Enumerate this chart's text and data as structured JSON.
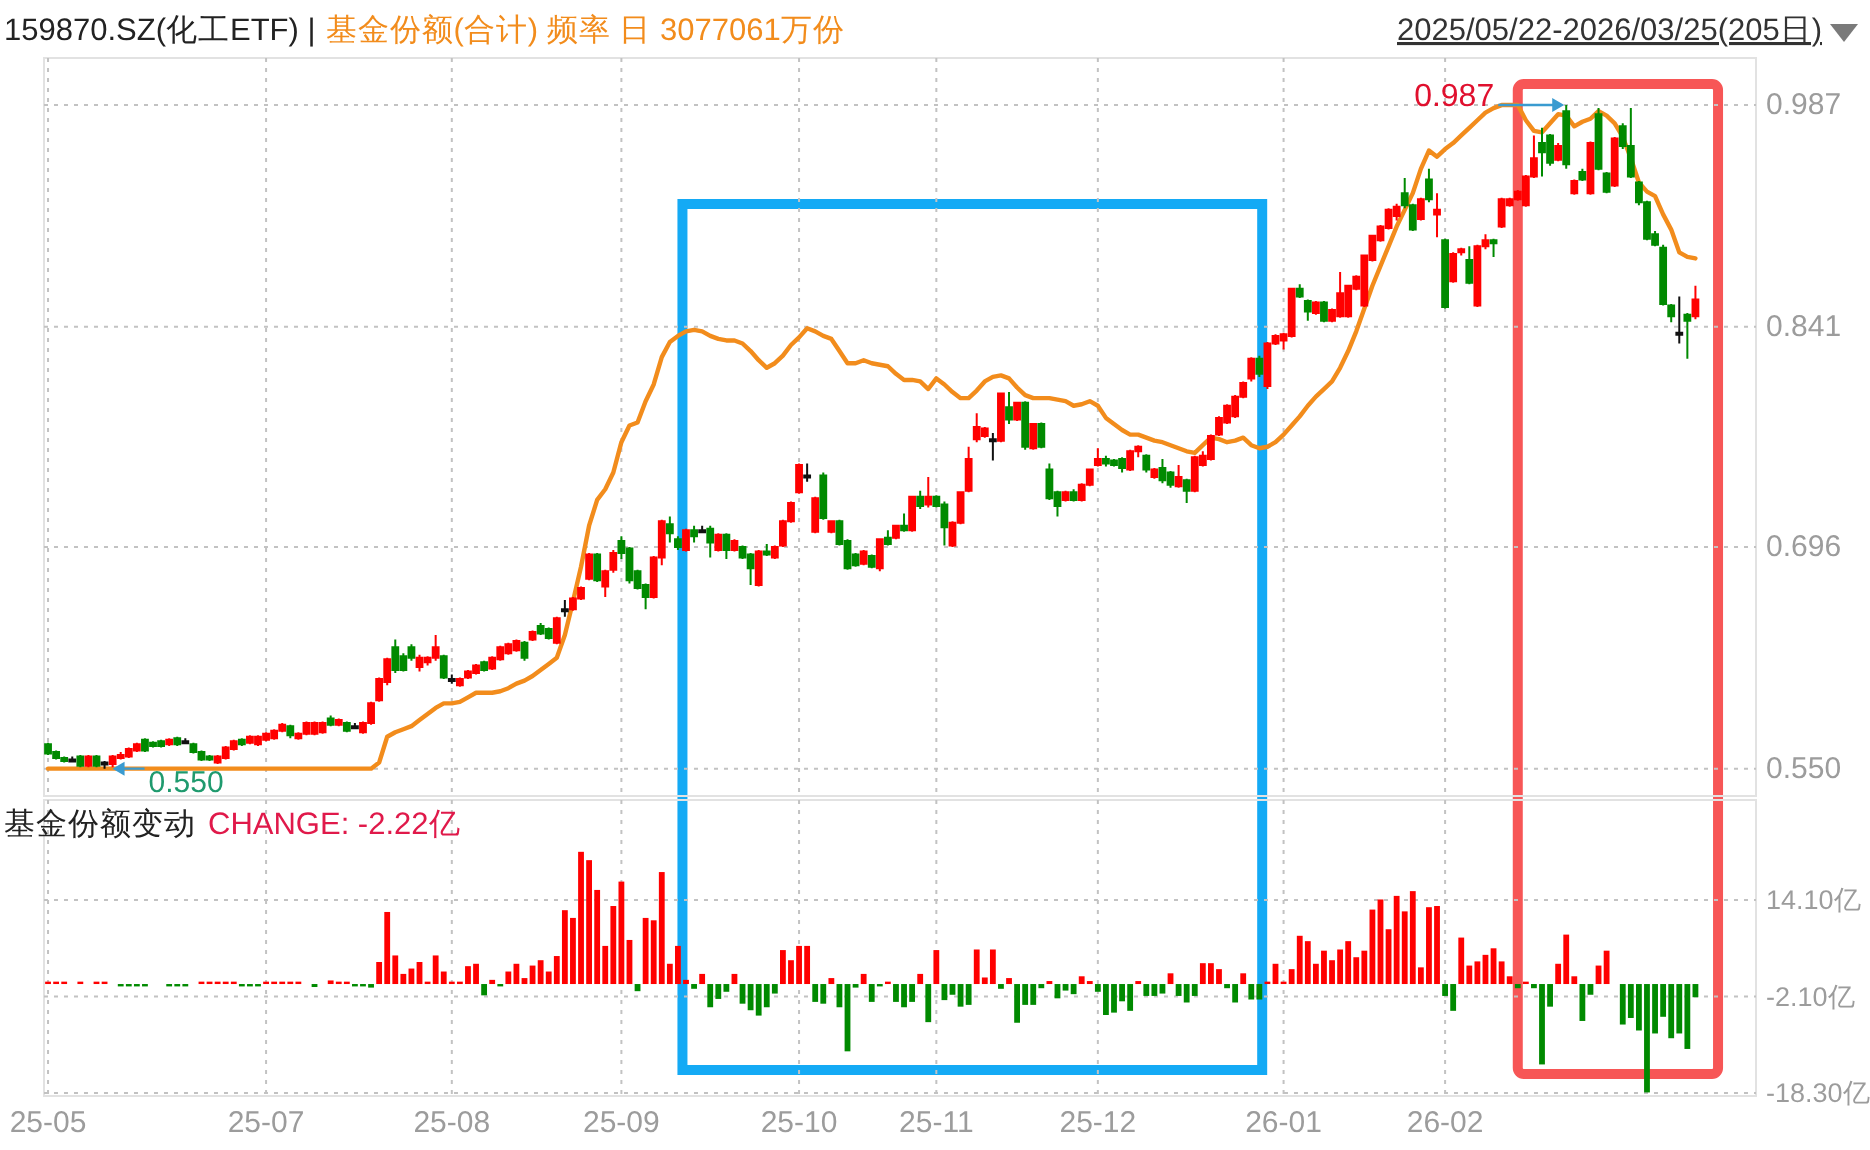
{
  "chart_data": [
    {
      "type": "candlestick",
      "title": "159870.SZ(化工ETF) |",
      "tick_labels": "y",
      "grid": true,
      "categories": [
        null,
        null,
        null,
        null,
        null,
        null,
        null,
        null,
        null,
        null,
        null,
        null,
        null,
        null,
        null,
        null,
        null,
        null,
        null,
        null,
        null,
        null,
        null,
        null,
        null,
        null,
        null,
        null,
        null,
        null,
        null,
        null,
        null,
        null,
        null,
        null,
        null,
        null,
        null,
        null,
        null,
        null,
        null,
        null,
        null,
        null,
        null,
        null,
        null,
        null,
        null,
        null,
        null,
        null,
        null,
        null,
        null,
        null,
        null,
        null,
        null,
        null,
        null,
        null,
        null,
        null,
        null,
        null,
        null,
        null,
        null,
        null,
        null,
        null,
        null,
        null,
        null,
        null,
        null,
        null,
        null,
        null,
        null,
        null,
        null,
        null,
        null,
        null,
        null,
        null,
        null,
        null,
        null,
        null,
        null,
        null,
        null,
        null,
        null,
        null,
        null,
        null,
        null,
        null,
        null,
        null,
        null,
        null,
        null,
        null,
        null,
        null,
        null,
        null,
        null,
        null,
        null,
        null,
        null,
        null,
        null,
        null,
        null,
        null,
        null,
        null,
        null,
        null,
        null,
        null,
        null,
        null,
        null,
        null,
        null,
        null,
        null,
        null,
        null,
        null,
        null,
        null,
        null,
        null,
        null,
        null,
        null,
        null,
        null,
        null,
        null,
        null,
        null,
        null,
        null,
        null,
        null,
        null,
        null,
        null,
        null,
        null,
        null,
        null,
        null,
        null,
        null,
        null,
        null,
        null,
        null,
        null,
        null,
        null,
        null,
        null,
        null,
        null,
        null,
        null,
        null,
        null,
        null,
        null,
        null,
        null,
        null,
        null,
        null,
        null,
        null,
        null,
        null,
        null,
        null,
        null,
        null,
        null,
        null,
        null,
        null,
        null,
        null,
        null,
        null
      ],
      "ohlc": [
        [
          0.566,
          0.567,
          0.559,
          0.56
        ],
        [
          0.561,
          0.562,
          0.556,
          0.557
        ],
        [
          0.557,
          0.558,
          0.554,
          0.555
        ],
        [
          0.556,
          0.558,
          0.554,
          0.556
        ],
        [
          0.558,
          0.559,
          0.551,
          0.552
        ],
        [
          0.552,
          0.559,
          0.551,
          0.558
        ],
        [
          0.558,
          0.559,
          0.551,
          0.552
        ],
        [
          0.554,
          0.555,
          0.55,
          0.554
        ],
        [
          0.553,
          0.559,
          0.551,
          0.558
        ],
        [
          0.557,
          0.561,
          0.556,
          0.559
        ],
        [
          0.558,
          0.564,
          0.557,
          0.563
        ],
        [
          0.562,
          0.567,
          0.561,
          0.566
        ],
        [
          0.569,
          0.57,
          0.561,
          0.562
        ],
        [
          0.567,
          0.568,
          0.564,
          0.565
        ],
        [
          0.568,
          0.569,
          0.564,
          0.565
        ],
        [
          0.566,
          0.57,
          0.565,
          0.569
        ],
        [
          0.57,
          0.571,
          0.565,
          0.566
        ],
        [
          0.568,
          0.57,
          0.567,
          0.568
        ],
        [
          0.566,
          0.567,
          0.56,
          0.561
        ],
        [
          0.561,
          0.562,
          0.555,
          0.556
        ],
        [
          0.558,
          0.559,
          0.555,
          0.556
        ],
        [
          0.554,
          0.559,
          0.553,
          0.558
        ],
        [
          0.557,
          0.565,
          0.556,
          0.564
        ],
        [
          0.563,
          0.569,
          0.562,
          0.568
        ],
        [
          0.569,
          0.57,
          0.565,
          0.566
        ],
        [
          0.567,
          0.572,
          0.566,
          0.571
        ],
        [
          0.566,
          0.572,
          0.565,
          0.571
        ],
        [
          0.569,
          0.574,
          0.568,
          0.573
        ],
        [
          0.57,
          0.576,
          0.569,
          0.575
        ],
        [
          0.575,
          0.58,
          0.574,
          0.579
        ],
        [
          0.578,
          0.579,
          0.57,
          0.572
        ],
        [
          0.57,
          0.574,
          0.569,
          0.573
        ],
        [
          0.573,
          0.581,
          0.572,
          0.58
        ],
        [
          0.573,
          0.581,
          0.572,
          0.58
        ],
        [
          0.574,
          0.581,
          0.573,
          0.58
        ],
        [
          0.583,
          0.585,
          0.578,
          0.579
        ],
        [
          0.579,
          0.583,
          0.578,
          0.582
        ],
        [
          0.58,
          0.581,
          0.574,
          0.575
        ],
        [
          0.578,
          0.58,
          0.576,
          0.578
        ],
        [
          0.574,
          0.581,
          0.573,
          0.58
        ],
        [
          0.58,
          0.594,
          0.579,
          0.593
        ],
        [
          0.595,
          0.61,
          0.594,
          0.609
        ],
        [
          0.607,
          0.623,
          0.605,
          0.622
        ],
        [
          0.63,
          0.635,
          0.613,
          0.615
        ],
        [
          0.624,
          0.626,
          0.614,
          0.615
        ],
        [
          0.63,
          0.632,
          0.621,
          0.623
        ],
        [
          0.617,
          0.625,
          0.614,
          0.623
        ],
        [
          0.62,
          0.624,
          0.618,
          0.623
        ],
        [
          0.623,
          0.638,
          0.621,
          0.63
        ],
        [
          0.624,
          0.625,
          0.609,
          0.61
        ],
        [
          0.609,
          0.612,
          0.606,
          0.609
        ],
        [
          0.605,
          0.61,
          0.604,
          0.609
        ],
        [
          0.61,
          0.615,
          0.609,
          0.614
        ],
        [
          0.613,
          0.619,
          0.612,
          0.618
        ],
        [
          0.62,
          0.621,
          0.614,
          0.615
        ],
        [
          0.616,
          0.624,
          0.615,
          0.623
        ],
        [
          0.622,
          0.631,
          0.621,
          0.63
        ],
        [
          0.626,
          0.633,
          0.625,
          0.632
        ],
        [
          0.628,
          0.635,
          0.627,
          0.634
        ],
        [
          0.633,
          0.634,
          0.621,
          0.623
        ],
        [
          0.635,
          0.641,
          0.634,
          0.64
        ],
        [
          0.644,
          0.646,
          0.638,
          0.639
        ],
        [
          0.642,
          0.643,
          0.635,
          0.636
        ],
        [
          0.633,
          0.65,
          0.632,
          0.649
        ],
        [
          0.655,
          0.661,
          0.65,
          0.655
        ],
        [
          0.655,
          0.663,
          0.654,
          0.662
        ],
        [
          0.662,
          0.67,
          0.661,
          0.669
        ],
        [
          0.675,
          0.692,
          0.674,
          0.691
        ],
        [
          0.691,
          0.692,
          0.673,
          0.674
        ],
        [
          0.67,
          0.681,
          0.663,
          0.68
        ],
        [
          0.681,
          0.694,
          0.679,
          0.692
        ],
        [
          0.7,
          0.703,
          0.688,
          0.692
        ],
        [
          0.695,
          0.696,
          0.672,
          0.674
        ],
        [
          0.68,
          0.681,
          0.668,
          0.669
        ],
        [
          0.671,
          0.672,
          0.655,
          0.663
        ],
        [
          0.663,
          0.69,
          0.662,
          0.689
        ],
        [
          0.689,
          0.714,
          0.684,
          0.713
        ],
        [
          0.711,
          0.716,
          0.699,
          0.705
        ],
        [
          0.701,
          0.703,
          0.694,
          0.696
        ],
        [
          0.694,
          0.708,
          0.693,
          0.707
        ],
        [
          0.707,
          0.71,
          0.699,
          0.703
        ],
        [
          0.707,
          0.71,
          0.705,
          0.707
        ],
        [
          0.708,
          0.71,
          0.689,
          0.699
        ],
        [
          0.694,
          0.705,
          0.693,
          0.704
        ],
        [
          0.704,
          0.705,
          0.688,
          0.694
        ],
        [
          0.694,
          0.701,
          0.693,
          0.7
        ],
        [
          0.696,
          0.697,
          0.688,
          0.689
        ],
        [
          0.691,
          0.692,
          0.671,
          0.682
        ],
        [
          0.671,
          0.694,
          0.67,
          0.693
        ],
        [
          0.693,
          0.698,
          0.69,
          0.691
        ],
        [
          0.689,
          0.697,
          0.688,
          0.696
        ],
        [
          0.697,
          0.714,
          0.696,
          0.713
        ],
        [
          0.713,
          0.726,
          0.712,
          0.725
        ],
        [
          0.732,
          0.751,
          0.731,
          0.75
        ],
        [
          0.743,
          0.751,
          0.739,
          0.743
        ],
        [
          0.706,
          0.729,
          0.705,
          0.728
        ],
        [
          0.743,
          0.745,
          0.714,
          0.715
        ],
        [
          0.706,
          0.713,
          0.705,
          0.713
        ],
        [
          0.713,
          0.714,
          0.697,
          0.698
        ],
        [
          0.7,
          0.701,
          0.681,
          0.682
        ],
        [
          0.691,
          0.692,
          0.683,
          0.684
        ],
        [
          0.685,
          0.694,
          0.684,
          0.693
        ],
        [
          0.69,
          0.691,
          0.682,
          0.683
        ],
        [
          0.682,
          0.701,
          0.68,
          0.701
        ],
        [
          0.702,
          0.707,
          0.697,
          0.698
        ],
        [
          0.702,
          0.71,
          0.701,
          0.71
        ],
        [
          0.71,
          0.718,
          0.706,
          0.707
        ],
        [
          0.707,
          0.729,
          0.706,
          0.729
        ],
        [
          0.729,
          0.733,
          0.721,
          0.723
        ],
        [
          0.724,
          0.742,
          0.722,
          0.729
        ],
        [
          0.729,
          0.73,
          0.722,
          0.723
        ],
        [
          0.724,
          0.726,
          0.697,
          0.709
        ],
        [
          0.697,
          0.713,
          0.696,
          0.712
        ],
        [
          0.712,
          0.732,
          0.711,
          0.732
        ],
        [
          0.733,
          0.762,
          0.732,
          0.754
        ],
        [
          0.767,
          0.784,
          0.765,
          0.775
        ],
        [
          0.769,
          0.775,
          0.768,
          0.774
        ],
        [
          0.767,
          0.771,
          0.753,
          0.767
        ],
        [
          0.766,
          0.797,
          0.765,
          0.797
        ],
        [
          0.788,
          0.798,
          0.777,
          0.78
        ],
        [
          0.78,
          0.791,
          0.779,
          0.791
        ],
        [
          0.791,
          0.792,
          0.76,
          0.762
        ],
        [
          0.761,
          0.777,
          0.76,
          0.777
        ],
        [
          0.777,
          0.778,
          0.761,
          0.762
        ],
        [
          0.747,
          0.751,
          0.727,
          0.728
        ],
        [
          0.732,
          0.733,
          0.716,
          0.723
        ],
        [
          0.727,
          0.733,
          0.726,
          0.732
        ],
        [
          0.732,
          0.734,
          0.726,
          0.727
        ],
        [
          0.727,
          0.738,
          0.726,
          0.737
        ],
        [
          0.737,
          0.747,
          0.736,
          0.747
        ],
        [
          0.75,
          0.761,
          0.749,
          0.754
        ],
        [
          0.754,
          0.756,
          0.749,
          0.751
        ],
        [
          0.753,
          0.754,
          0.749,
          0.75
        ],
        [
          0.754,
          0.755,
          0.745,
          0.748
        ],
        [
          0.747,
          0.76,
          0.746,
          0.759
        ],
        [
          0.759,
          0.763,
          0.755,
          0.762
        ],
        [
          0.756,
          0.757,
          0.745,
          0.747
        ],
        [
          0.742,
          0.748,
          0.741,
          0.747
        ],
        [
          0.748,
          0.754,
          0.738,
          0.74
        ],
        [
          0.745,
          0.746,
          0.735,
          0.737
        ],
        [
          0.736,
          0.75,
          0.735,
          0.742
        ],
        [
          0.74,
          0.741,
          0.725,
          0.733
        ],
        [
          0.733,
          0.756,
          0.732,
          0.755
        ],
        [
          0.75,
          0.759,
          0.749,
          0.756
        ],
        [
          0.754,
          0.77,
          0.753,
          0.769
        ],
        [
          0.77,
          0.782,
          0.769,
          0.781
        ],
        [
          0.778,
          0.79,
          0.777,
          0.789
        ],
        [
          0.782,
          0.796,
          0.781,
          0.795
        ],
        [
          0.795,
          0.805,
          0.794,
          0.804
        ],
        [
          0.807,
          0.821,
          0.805,
          0.82
        ],
        [
          0.82,
          0.822,
          0.808,
          0.81
        ],
        [
          0.802,
          0.831,
          0.8,
          0.83
        ],
        [
          0.83,
          0.836,
          0.829,
          0.835
        ],
        [
          0.832,
          0.837,
          0.826,
          0.836
        ],
        [
          0.835,
          0.866,
          0.834,
          0.866
        ],
        [
          0.866,
          0.869,
          0.86,
          0.861
        ],
        [
          0.858,
          0.859,
          0.845,
          0.851
        ],
        [
          0.85,
          0.858,
          0.849,
          0.857
        ],
        [
          0.857,
          0.858,
          0.844,
          0.845
        ],
        [
          0.845,
          0.853,
          0.844,
          0.852
        ],
        [
          0.848,
          0.877,
          0.847,
          0.863
        ],
        [
          0.848,
          0.868,
          0.847,
          0.868
        ],
        [
          0.866,
          0.875,
          0.865,
          0.874
        ],
        [
          0.855,
          0.888,
          0.854,
          0.888
        ],
        [
          0.885,
          0.901,
          0.884,
          0.901
        ],
        [
          0.898,
          0.908,
          0.897,
          0.907
        ],
        [
          0.906,
          0.919,
          0.905,
          0.918
        ],
        [
          0.914,
          0.922,
          0.911,
          0.92
        ],
        [
          0.929,
          0.939,
          0.919,
          0.921
        ],
        [
          0.921,
          0.922,
          0.904,
          0.905
        ],
        [
          0.912,
          0.926,
          0.911,
          0.925
        ],
        [
          0.938,
          0.945,
          0.923,
          0.925
        ],
        [
          0.915,
          0.929,
          0.9,
          0.918
        ],
        [
          0.898,
          0.899,
          0.853,
          0.854
        ],
        [
          0.871,
          0.89,
          0.87,
          0.889
        ],
        [
          0.89,
          0.893,
          0.888,
          0.892
        ],
        [
          0.885,
          0.894,
          0.869,
          0.87
        ],
        [
          0.855,
          0.895,
          0.854,
          0.894
        ],
        [
          0.894,
          0.902,
          0.892,
          0.898
        ],
        [
          0.898,
          0.899,
          0.887,
          0.896
        ],
        [
          0.907,
          0.926,
          0.906,
          0.925
        ],
        [
          0.921,
          0.926,
          0.92,
          0.925
        ],
        [
          0.925,
          0.931,
          0.924,
          0.93
        ],
        [
          0.921,
          0.941,
          0.92,
          0.94
        ],
        [
          0.94,
          0.967,
          0.939,
          0.952
        ],
        [
          0.962,
          0.972,
          0.94,
          0.956
        ],
        [
          0.967,
          0.968,
          0.947,
          0.949
        ],
        [
          0.951,
          0.962,
          0.95,
          0.96
        ],
        [
          0.983,
          0.987,
          0.945,
          0.948
        ],
        [
          0.929,
          0.938,
          0.928,
          0.937
        ],
        [
          0.943,
          0.945,
          0.937,
          0.938
        ],
        [
          0.929,
          0.963,
          0.928,
          0.962
        ],
        [
          0.981,
          0.985,
          0.944,
          0.945
        ],
        [
          0.942,
          0.943,
          0.929,
          0.93
        ],
        [
          0.934,
          0.966,
          0.933,
          0.965
        ],
        [
          0.973,
          0.975,
          0.958,
          0.96
        ],
        [
          0.96,
          0.985,
          0.939,
          0.94
        ],
        [
          0.936,
          0.937,
          0.921,
          0.923
        ],
        [
          0.923,
          0.924,
          0.898,
          0.899
        ],
        [
          0.902,
          0.904,
          0.894,
          0.895
        ],
        [
          0.893,
          0.895,
          0.855,
          0.856
        ],
        [
          0.855,
          0.856,
          0.844,
          0.848
        ],
        [
          0.837,
          0.861,
          0.83,
          0.837
        ],
        [
          0.849,
          0.85,
          0.82,
          0.845
        ],
        [
          0.848,
          0.868,
          0.846,
          0.859
        ]
      ],
      "series": [
        {
          "type": "line",
          "name": "基金份额(合计) 频率 日 3077061万份",
          "color": "#f28c1c",
          "values": [
            0.55,
            0.55,
            0.55,
            0.55,
            0.55,
            0.55,
            0.55,
            0.55,
            0.55,
            0.55,
            0.55,
            0.55,
            0.55,
            0.55,
            0.55,
            0.55,
            0.55,
            0.55,
            0.55,
            0.55,
            0.55,
            0.55,
            0.55,
            0.55,
            0.55,
            0.55,
            0.55,
            0.55,
            0.55,
            0.55,
            0.55,
            0.55,
            0.55,
            0.55,
            0.55,
            0.55,
            0.55,
            0.55,
            0.55,
            0.55,
            0.55,
            0.554,
            0.571,
            0.574,
            0.576,
            0.578,
            0.582,
            0.586,
            0.59,
            0.593,
            0.593,
            0.594,
            0.597,
            0.6,
            0.6,
            0.6,
            0.601,
            0.603,
            0.606,
            0.608,
            0.611,
            0.615,
            0.619,
            0.623,
            0.638,
            0.66,
            0.683,
            0.71,
            0.727,
            0.734,
            0.745,
            0.765,
            0.776,
            0.778,
            0.792,
            0.803,
            0.821,
            0.831,
            0.835,
            0.838,
            0.839,
            0.838,
            0.835,
            0.833,
            0.832,
            0.832,
            0.83,
            0.825,
            0.819,
            0.814,
            0.817,
            0.822,
            0.829,
            0.834,
            0.84,
            0.838,
            0.835,
            0.833,
            0.825,
            0.817,
            0.817,
            0.819,
            0.817,
            0.816,
            0.815,
            0.81,
            0.806,
            0.806,
            0.805,
            0.8,
            0.807,
            0.803,
            0.798,
            0.794,
            0.794,
            0.799,
            0.805,
            0.808,
            0.809,
            0.807,
            0.801,
            0.796,
            0.794,
            0.794,
            0.794,
            0.793,
            0.792,
            0.789,
            0.79,
            0.792,
            0.789,
            0.781,
            0.777,
            0.773,
            0.77,
            0.77,
            0.768,
            0.766,
            0.765,
            0.763,
            0.761,
            0.759,
            0.758,
            0.763,
            0.768,
            0.767,
            0.765,
            0.766,
            0.768,
            0.763,
            0.761,
            0.762,
            0.765,
            0.77,
            0.776,
            0.782,
            0.789,
            0.795,
            0.8,
            0.805,
            0.814,
            0.825,
            0.838,
            0.853,
            0.868,
            0.881,
            0.894,
            0.907,
            0.918,
            0.929,
            0.945,
            0.957,
            0.953,
            0.958,
            0.962,
            0.967,
            0.972,
            0.977,
            0.982,
            0.985,
            0.987,
            0.987,
            0.987,
            0.977,
            0.97,
            0.969,
            0.975,
            0.981,
            0.98,
            0.973,
            0.976,
            0.978,
            0.983,
            0.98,
            0.975,
            0.966,
            0.952,
            0.936,
            0.93,
            0.927,
            0.915,
            0.905,
            0.89,
            0.887,
            0.886
          ]
        }
      ],
      "ylim": [
        0.532,
        1.018
      ],
      "yticks": [
        0.987,
        0.841,
        0.696,
        {
          "value": 0.55,
          "label": "0.550"
        }
      ],
      "annotations": [
        "2025/05/22-2026/03/25(205日)",
        "0.987",
        "0.550"
      ]
    },
    {
      "type": "bar",
      "title": "基金份额变动",
      "subtitle": "CHANGE: -2.22亿",
      "grid": true,
      "categories": [
        "25-05",
        null,
        null,
        null,
        null,
        null,
        null,
        null,
        null,
        null,
        null,
        null,
        null,
        null,
        null,
        null,
        null,
        null,
        null,
        null,
        null,
        null,
        null,
        null,
        null,
        null,
        null,
        "25-07",
        null,
        null,
        null,
        null,
        null,
        null,
        null,
        null,
        null,
        null,
        null,
        null,
        null,
        null,
        null,
        null,
        null,
        null,
        null,
        null,
        null,
        null,
        "25-08",
        null,
        null,
        null,
        null,
        null,
        null,
        null,
        null,
        null,
        null,
        null,
        null,
        null,
        null,
        null,
        null,
        null,
        null,
        null,
        null,
        "25-09",
        null,
        null,
        null,
        null,
        null,
        null,
        null,
        null,
        null,
        null,
        null,
        null,
        null,
        null,
        null,
        null,
        null,
        null,
        null,
        null,
        null,
        "25-10",
        null,
        null,
        null,
        null,
        null,
        null,
        null,
        null,
        null,
        null,
        null,
        null,
        null,
        null,
        null,
        null,
        "25-11",
        null,
        null,
        null,
        null,
        null,
        null,
        null,
        null,
        null,
        null,
        null,
        null,
        null,
        null,
        null,
        null,
        null,
        null,
        null,
        "25-12",
        null,
        null,
        null,
        null,
        null,
        null,
        null,
        null,
        null,
        null,
        null,
        null,
        null,
        null,
        null,
        null,
        null,
        null,
        null,
        null,
        null,
        null,
        "26-01",
        null,
        null,
        null,
        null,
        null,
        null,
        null,
        null,
        null,
        null,
        null,
        null,
        null,
        null,
        null,
        null,
        null,
        null,
        null,
        "26-02",
        null,
        null,
        null,
        null,
        null,
        null,
        null,
        null,
        null,
        null,
        null,
        null,
        null,
        null,
        null,
        null,
        null,
        null,
        null,
        null,
        null,
        null,
        null,
        null,
        null,
        null,
        null,
        null,
        null,
        null,
        null
      ],
      "values": [
        0.4,
        0.4,
        0.4,
        0,
        0.4,
        0,
        0.4,
        0.4,
        0,
        -0.4,
        -0.4,
        -0.4,
        -0.4,
        0,
        0,
        -0.4,
        -0.4,
        -0.4,
        0,
        0.4,
        0.4,
        0.4,
        0.4,
        0.4,
        -0.4,
        -0.4,
        -0.4,
        0.4,
        0.4,
        0.4,
        0.4,
        0.4,
        0,
        -0.5,
        0,
        0.6,
        0.4,
        0.4,
        -0.4,
        -0.4,
        -0.6,
        3.7,
        12.1,
        4.8,
        1.7,
        2.6,
        3.7,
        0.4,
        4.8,
        2.1,
        0.4,
        0.4,
        3.0,
        3.4,
        -1.9,
        0.7,
        -0.4,
        2.1,
        3.4,
        1.0,
        3.1,
        4.0,
        2.1,
        4.7,
        12.4,
        11.1,
        22.2,
        20.8,
        15.8,
        6.4,
        13.1,
        17.2,
        7.4,
        -1.2,
        11.1,
        10.7,
        18.8,
        3.4,
        6.4,
        0.7,
        -0.8,
        1.7,
        -3.9,
        -2.5,
        -1.3,
        1.7,
        -3.3,
        -4.4,
        -5.3,
        -3.9,
        -1.6,
        5.7,
        4.0,
        6.4,
        6.4,
        -3.0,
        -3.3,
        1.0,
        -3.9,
        -11.3,
        -0.6,
        1.7,
        -3.0,
        -0.4,
        0.4,
        -3.0,
        -3.9,
        -3.0,
        1.7,
        -6.4,
        5.7,
        -2.7,
        -1.8,
        -3.8,
        -3.5,
        5.8,
        1.1,
        5.8,
        -0.8,
        1.0,
        -6.5,
        -3.5,
        -3.5,
        -0.7,
        0.5,
        -2.4,
        -1.1,
        -1.7,
        1.3,
        0.5,
        -1.3,
        -5.2,
        -4.8,
        -2.9,
        -4.5,
        0.5,
        -2.0,
        -2.0,
        -1.6,
        1.8,
        -2.0,
        -3.1,
        -2.0,
        3.5,
        3.5,
        2.5,
        -0.7,
        -3.1,
        1.8,
        -2.6,
        -2.6,
        0.4,
        3.4,
        0.4,
        2.5,
        8.1,
        7.2,
        3.4,
        5.6,
        4.0,
        5.8,
        7.2,
        4.5,
        5.6,
        12.5,
        14.2,
        9.2,
        14.8,
        12.2,
        15.6,
        2.8,
        12.9,
        13.1,
        -2.0,
        -4.5,
        7.8,
        3.1,
        3.8,
        4.9,
        6.0,
        3.8,
        1.3,
        -0.7,
        0.4,
        -0.7,
        -13.5,
        -3.8,
        3.4,
        8.3,
        1.3,
        -6.2,
        -1.8,
        3.1,
        5.6,
        0,
        -6.8,
        -5.7,
        -7.8,
        -18.2,
        -8.3,
        -5.5,
        -9.1,
        -8.3,
        -10.9,
        -2.22
      ],
      "ylim": [
        -18.8,
        30.9
      ],
      "yticks": [
        {
          "value": 14.1,
          "label": "14.10亿"
        },
        {
          "value": -2.1,
          "label": "-2.10亿"
        },
        {
          "value": -18.3,
          "label": "-18.30亿"
        }
      ]
    }
  ]
}
